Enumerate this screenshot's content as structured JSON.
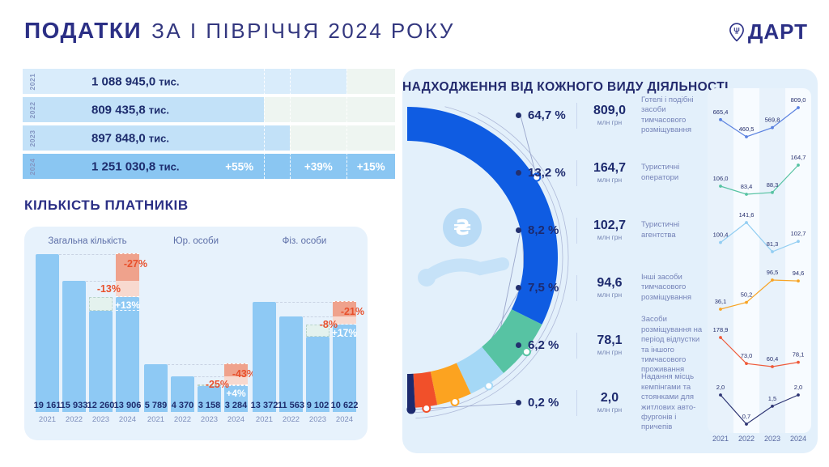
{
  "header": {
    "title_bold": "ПОДАТКИ",
    "title_rest": "ЗА І ПІВРІЧЧЯ 2024 РОКУ",
    "logo_text": "ДАРТ",
    "accent_color": "#2b2f85"
  },
  "chart_data": [
    {
      "type": "bar",
      "orientation": "horizontal",
      "title": "",
      "unit": "тис.",
      "categories": [
        "2021",
        "2022",
        "2023",
        "2024"
      ],
      "values": [
        1088945.0,
        809435.8,
        897848.0,
        1251030.8
      ],
      "values_display": [
        "1 088 945,0",
        "809 435,8",
        "897 848,0",
        "1 251 030,8"
      ],
      "growth_labels": [
        "+55%",
        "+39%",
        "+15%"
      ],
      "bar_colors": [
        "#d9ecfb",
        "#c2e1f8",
        "#c2e1f8",
        "#8ac6f2"
      ]
    },
    {
      "type": "bar",
      "title": "КІЛЬКІСТЬ ПЛАТНИКІВ",
      "categories": [
        "2021",
        "2022",
        "2023",
        "2024"
      ],
      "bar_color": "#8ec9f4",
      "series": [
        {
          "name": "Загальна кількість",
          "values": [
            19161,
            15933,
            12260,
            13906
          ],
          "values_display": [
            "19 161",
            "15 933",
            "12 260",
            "13 906"
          ],
          "delta_vs_2022": "-13%",
          "delta_vs_2021": "-27%",
          "delta_vs_2023": "+13%"
        },
        {
          "name": "Юр. особи",
          "values": [
            5789,
            4370,
            3158,
            3284
          ],
          "values_display": [
            "5 789",
            "4 370",
            "3 158",
            "3 284"
          ],
          "delta_vs_2022": "-25%",
          "delta_vs_2021": "-43%",
          "delta_vs_2023": "+4%"
        },
        {
          "name": "Фіз. особи",
          "values": [
            13372,
            11563,
            9102,
            10622
          ],
          "values_display": [
            "13 372",
            "11 563",
            "9 102",
            "10 622"
          ],
          "delta_vs_2022": "-8%",
          "delta_vs_2021": "-21%",
          "delta_vs_2023": "+17%"
        }
      ]
    },
    {
      "type": "pie",
      "title": "НАДХОДЖЕННЯ ВІД КОЖНОГО ВИДУ ДІЯЛЬНОСТІ",
      "unit": "млн грн",
      "slices": [
        {
          "label": "Готелі і подібні засоби тимчасового розміщування",
          "pct": 64.7,
          "pct_display": "64,7 %",
          "value": 809.0,
          "value_display": "809,0",
          "color": "#0f5ce2"
        },
        {
          "label": "Туристичні оператори",
          "pct": 13.2,
          "pct_display": "13,2 %",
          "value": 164.7,
          "value_display": "164,7",
          "color": "#57c3a3"
        },
        {
          "label": "Туристичні агентства",
          "pct": 8.2,
          "pct_display": "8,2 %",
          "value": 102.7,
          "value_display": "102,7",
          "color": "#a5d8f6"
        },
        {
          "label": "Інші засоби тимчасового розміщування",
          "pct": 7.5,
          "pct_display": "7,5 %",
          "value": 94.6,
          "value_display": "94,6",
          "color": "#fca320"
        },
        {
          "label": "Засоби розміщування на період відпустки та іншого тимчасового проживання",
          "pct": 6.2,
          "pct_display": "6,2 %",
          "value": 78.1,
          "value_display": "78,1",
          "color": "#f1502a"
        },
        {
          "label": "Надання місць кемпінгами та стоянками для житлових авто-фургонів і причепів",
          "pct": 0.2,
          "pct_display": "0,2 %",
          "value": 2.0,
          "value_display": "2,0",
          "color": "#1c2a6e"
        }
      ]
    },
    {
      "type": "line",
      "title": "",
      "x": [
        "2021",
        "2022",
        "2023",
        "2024"
      ],
      "series": [
        {
          "name": "Готелі і подібні засоби тимчасового розміщування",
          "color": "#5b82e0",
          "values": [
            665.4,
            460.5,
            569.8,
            809.0
          ],
          "values_display": [
            "665,4",
            "460,5",
            "569,8",
            "809,0"
          ]
        },
        {
          "name": "Туристичні оператори",
          "color": "#57c3a3",
          "values": [
            106.0,
            83.4,
            88.3,
            164.7
          ],
          "values_display": [
            "106,0",
            "83,4",
            "88,3",
            "164,7"
          ]
        },
        {
          "name": "Туристичні агентства",
          "color": "#93cef2",
          "values": [
            100.4,
            141.6,
            81.3,
            102.7
          ],
          "values_display": [
            "100,4",
            "141,6",
            "81,3",
            "102,7"
          ]
        },
        {
          "name": "Інші засоби тимчасового розміщування",
          "color": "#f8a425",
          "values": [
            36.1,
            50.2,
            96.5,
            94.6
          ],
          "values_display": [
            "36,1",
            "50,2",
            "96,5",
            "94,6"
          ]
        },
        {
          "name": "Засоби розміщування на період відпустки та іншого тимчасового проживання",
          "color": "#ef5a3a",
          "values": [
            178.9,
            73.0,
            60.4,
            78.1
          ],
          "values_display": [
            "178,9",
            "73,0",
            "60,4",
            "78,1"
          ]
        },
        {
          "name": "Надання місць кемпінгами та стоянками для житлових авто-фургонів і причепів",
          "color": "#2e3574",
          "values": [
            2.0,
            0.7,
            1.5,
            2.0
          ],
          "values_display": [
            "2,0",
            "0,7",
            "1,5",
            "2,0"
          ]
        }
      ]
    }
  ]
}
